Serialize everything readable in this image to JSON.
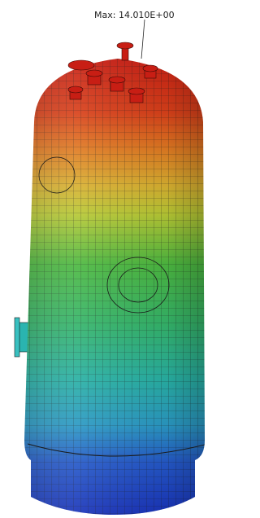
{
  "annotation": {
    "text": "Max: 14.010E+00"
  }
}
